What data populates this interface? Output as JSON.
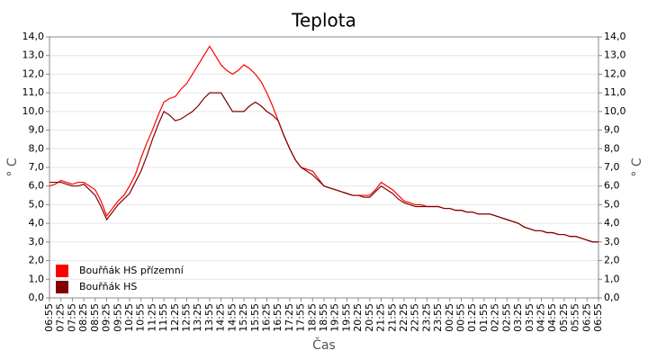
{
  "chart_data": {
    "type": "line",
    "title": "Teplota",
    "x_label": "Čas",
    "y_label": "° C",
    "y2_label": "° C",
    "categories": [
      "06:55",
      null,
      "07:25",
      null,
      "07:55",
      null,
      "08:25",
      null,
      "08:55",
      null,
      "09:25",
      null,
      "09:55",
      null,
      "10:25",
      null,
      "10:55",
      null,
      "11:25",
      null,
      "11:55",
      null,
      "12:25",
      null,
      "12:55",
      null,
      "13:25",
      null,
      "13:55",
      null,
      "14:25",
      null,
      "14:55",
      null,
      "15:25",
      null,
      "15:55",
      null,
      "16:25",
      null,
      "16:55",
      null,
      "17:25",
      null,
      "17:55",
      null,
      "18:25",
      null,
      "18:55",
      null,
      "19:25",
      null,
      "19:55",
      null,
      "20:25",
      null,
      "20:55",
      null,
      "21:25",
      null,
      "21:55",
      null,
      "22:25",
      null,
      "22:55",
      null,
      "23:25",
      null,
      "23:55",
      null,
      "00:25",
      null,
      "00:55",
      null,
      "01:25",
      null,
      "01:55",
      null,
      "02:25",
      null,
      "02:55",
      null,
      "03:25",
      null,
      "03:55",
      null,
      "04:25",
      null,
      "04:55",
      null,
      "05:25",
      null,
      "05:55",
      null,
      "06:25",
      null,
      "06:55"
    ],
    "series": [
      {
        "name": "Bouřňák HS přízemní",
        "color": "#ff0000",
        "values": [
          6.0,
          6.1,
          6.3,
          6.2,
          6.1,
          6.2,
          6.2,
          6.0,
          5.8,
          5.2,
          4.4,
          4.8,
          5.2,
          5.5,
          6.0,
          6.6,
          7.5,
          8.3,
          9.0,
          9.8,
          10.5,
          10.7,
          10.8,
          11.2,
          11.5,
          12.0,
          12.5,
          13.0,
          13.5,
          13.0,
          12.5,
          12.2,
          12.0,
          12.2,
          12.5,
          12.3,
          12.0,
          11.6,
          11.0,
          10.3,
          9.5,
          8.7,
          8.0,
          7.4,
          7.0,
          6.9,
          6.8,
          6.4,
          6.0,
          5.9,
          5.8,
          5.7,
          5.6,
          5.5,
          5.5,
          5.5,
          5.5,
          5.8,
          6.2,
          6.0,
          5.8,
          5.5,
          5.2,
          5.1,
          5.0,
          5.0,
          4.9,
          4.9,
          4.9,
          4.8,
          4.8,
          4.7,
          4.7,
          4.6,
          4.6,
          4.5,
          4.5,
          4.5,
          4.4,
          4.3,
          4.2,
          4.1,
          4.0,
          3.8,
          3.7,
          3.6,
          3.6,
          3.5,
          3.5,
          3.4,
          3.4,
          3.3,
          3.3,
          3.2,
          3.1,
          3.0,
          3.0
        ]
      },
      {
        "name": "Bouřňák HS",
        "color": "#800000",
        "values": [
          6.2,
          6.2,
          6.2,
          6.1,
          6.0,
          6.0,
          6.1,
          5.8,
          5.5,
          4.9,
          4.2,
          4.6,
          5.0,
          5.3,
          5.6,
          6.2,
          6.8,
          7.6,
          8.5,
          9.3,
          10.0,
          9.8,
          9.5,
          9.6,
          9.8,
          10.0,
          10.3,
          10.7,
          11.0,
          11.0,
          11.0,
          10.5,
          10.0,
          10.0,
          10.0,
          10.3,
          10.5,
          10.3,
          10.0,
          9.8,
          9.5,
          8.7,
          8.0,
          7.4,
          7.0,
          6.8,
          6.6,
          6.3,
          6.0,
          5.9,
          5.8,
          5.7,
          5.6,
          5.5,
          5.5,
          5.4,
          5.4,
          5.7,
          6.0,
          5.8,
          5.6,
          5.3,
          5.1,
          5.0,
          4.9,
          4.9,
          4.9,
          4.9,
          4.9,
          4.8,
          4.8,
          4.7,
          4.7,
          4.6,
          4.6,
          4.5,
          4.5,
          4.5,
          4.4,
          4.3,
          4.2,
          4.1,
          4.0,
          3.8,
          3.7,
          3.6,
          3.6,
          3.5,
          3.5,
          3.4,
          3.4,
          3.3,
          3.3,
          3.2,
          3.1,
          3.0,
          3.0
        ]
      }
    ],
    "ylim": [
      0,
      14
    ],
    "yticks": [
      {
        "value": 0,
        "label": "0,0"
      },
      {
        "value": 1,
        "label": "1,0"
      },
      {
        "value": 2,
        "label": "2,0"
      },
      {
        "value": 3,
        "label": "3,0"
      },
      {
        "value": 4,
        "label": "4,0"
      },
      {
        "value": 5,
        "label": "5,0"
      },
      {
        "value": 6,
        "label": "6,0"
      },
      {
        "value": 7,
        "label": "7,0"
      },
      {
        "value": 8,
        "label": "8,0"
      },
      {
        "value": 9,
        "label": "9,0"
      },
      {
        "value": 10,
        "label": "10,0"
      },
      {
        "value": 11,
        "label": "11,0"
      },
      {
        "value": 12,
        "label": "12,0"
      },
      {
        "value": 13,
        "label": "13,0"
      },
      {
        "value": 14,
        "label": "14,0"
      }
    ],
    "y2lim": [
      0,
      14
    ],
    "y2ticks": [
      {
        "value": 0,
        "label": "0,0"
      },
      {
        "value": 1,
        "label": "1,0"
      },
      {
        "value": 2,
        "label": "2,0"
      },
      {
        "value": 3,
        "label": "3,0"
      },
      {
        "value": 4,
        "label": "4,0"
      },
      {
        "value": 5,
        "label": "5,0"
      },
      {
        "value": 6,
        "label": "6,0"
      },
      {
        "value": 7,
        "label": "7,0"
      },
      {
        "value": 8,
        "label": "8,0"
      },
      {
        "value": 9,
        "label": "9,0"
      },
      {
        "value": 10,
        "label": "10,0"
      },
      {
        "value": 11,
        "label": "11,0"
      },
      {
        "value": 12,
        "label": "12,0"
      },
      {
        "value": 13,
        "label": "13,0"
      },
      {
        "value": 14,
        "label": "14,0"
      }
    ],
    "grid": true,
    "legend": "bottom-left"
  }
}
